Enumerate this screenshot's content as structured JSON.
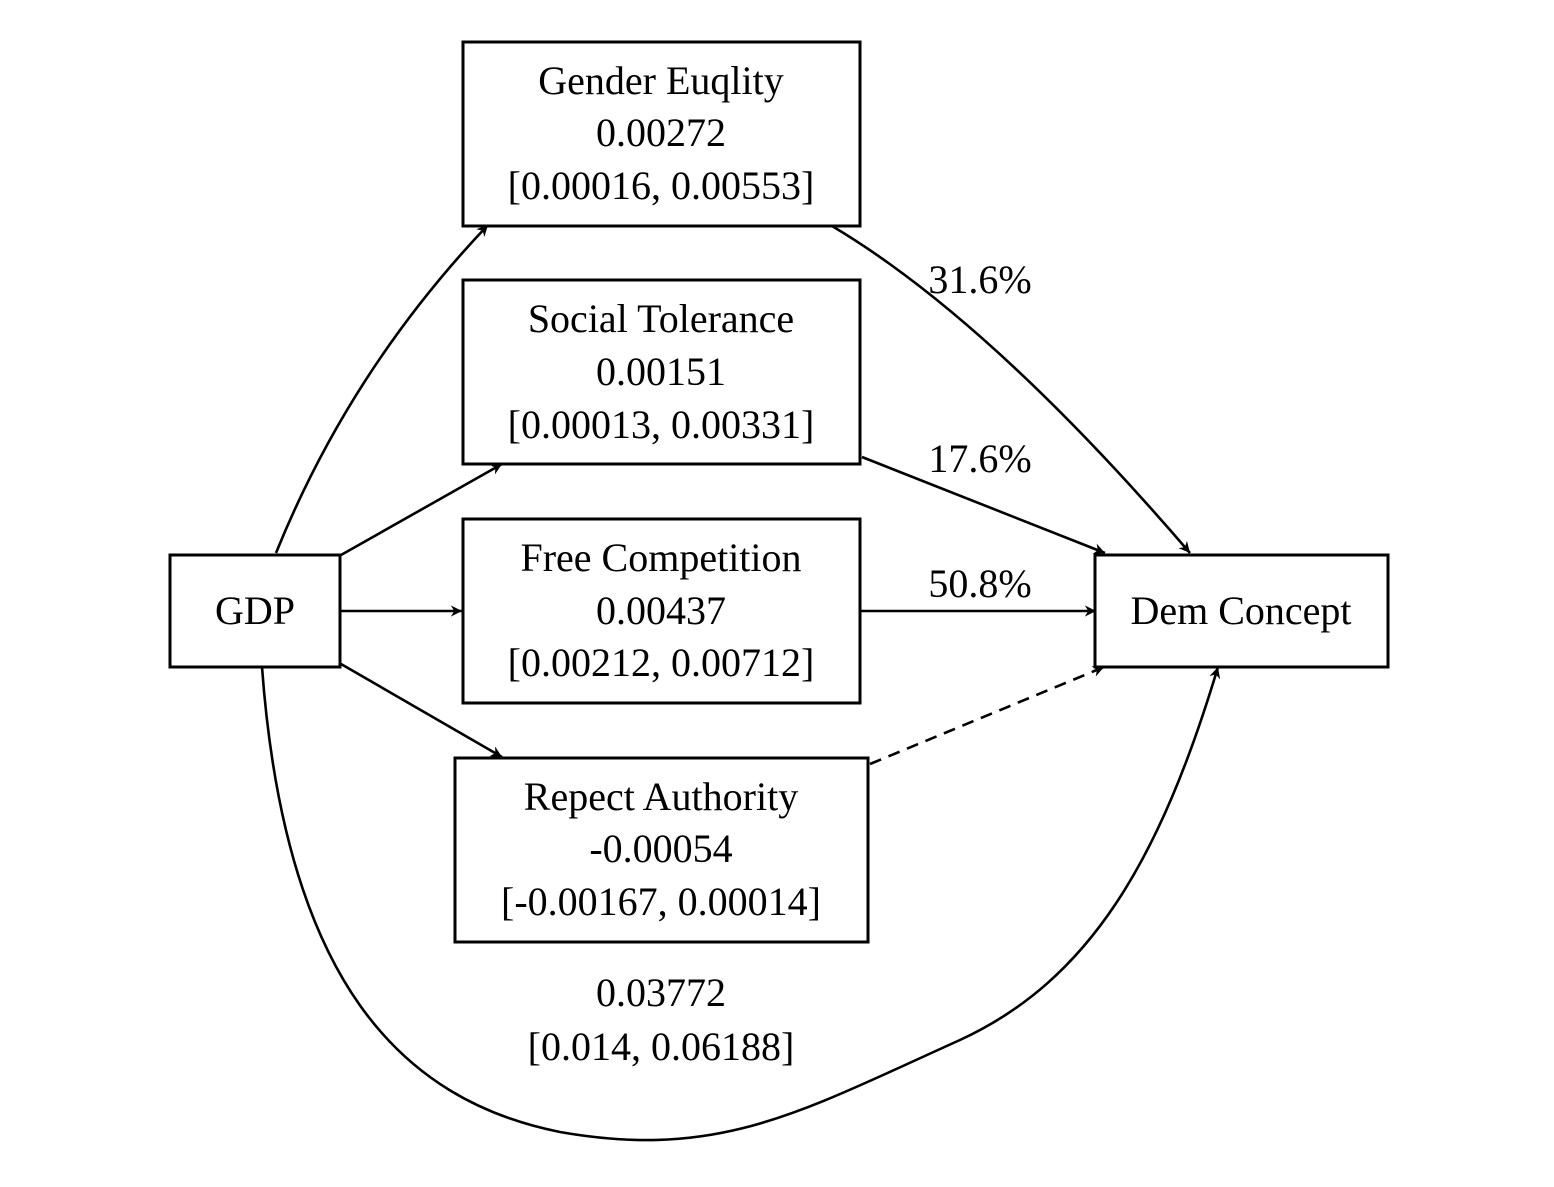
{
  "nodes": {
    "gdp": {
      "label": "GDP"
    },
    "gender_equality": {
      "label": "Gender Euqlity",
      "estimate": "0.00272",
      "ci": "[0.00016, 0.00553]"
    },
    "social_tolerance": {
      "label": "Social Tolerance",
      "estimate": "0.00151",
      "ci": "[0.00013, 0.00331]"
    },
    "free_competition": {
      "label": "Free Competition",
      "estimate": "0.00437",
      "ci": "[0.00212, 0.00712]"
    },
    "respect_authority": {
      "label": "Repect Authority",
      "estimate": "-0.00054",
      "ci": "[-0.00167, 0.00014]"
    },
    "dem_concept": {
      "label": "Dem Concept"
    }
  },
  "edge_labels": {
    "gender_equality_share": "31.6%",
    "social_tolerance_share": "17.6%",
    "free_competition_share": "50.8%"
  },
  "direct_effect": {
    "estimate": "0.03772",
    "ci": "[0.014, 0.06188]"
  },
  "edge_styles": {
    "respect_authority_to_dem_concept": "dashed"
  }
}
